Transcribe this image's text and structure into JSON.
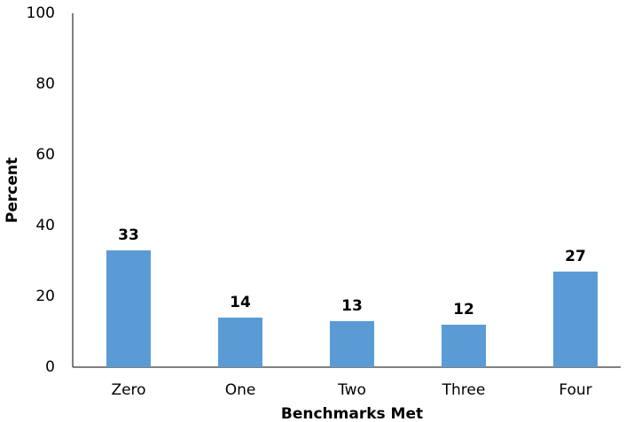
{
  "chart_data": {
    "type": "bar",
    "categories": [
      "Zero",
      "One",
      "Two",
      "Three",
      "Four"
    ],
    "values": [
      33,
      14,
      13,
      12,
      27
    ],
    "color": "#5b9bd5",
    "xlabel": "Benchmarks Met",
    "ylabel": "Percent",
    "ylim": [
      0,
      100
    ],
    "yticks": [
      0,
      20,
      40,
      60,
      80,
      100
    ],
    "grid": false,
    "data_labels": true
  }
}
